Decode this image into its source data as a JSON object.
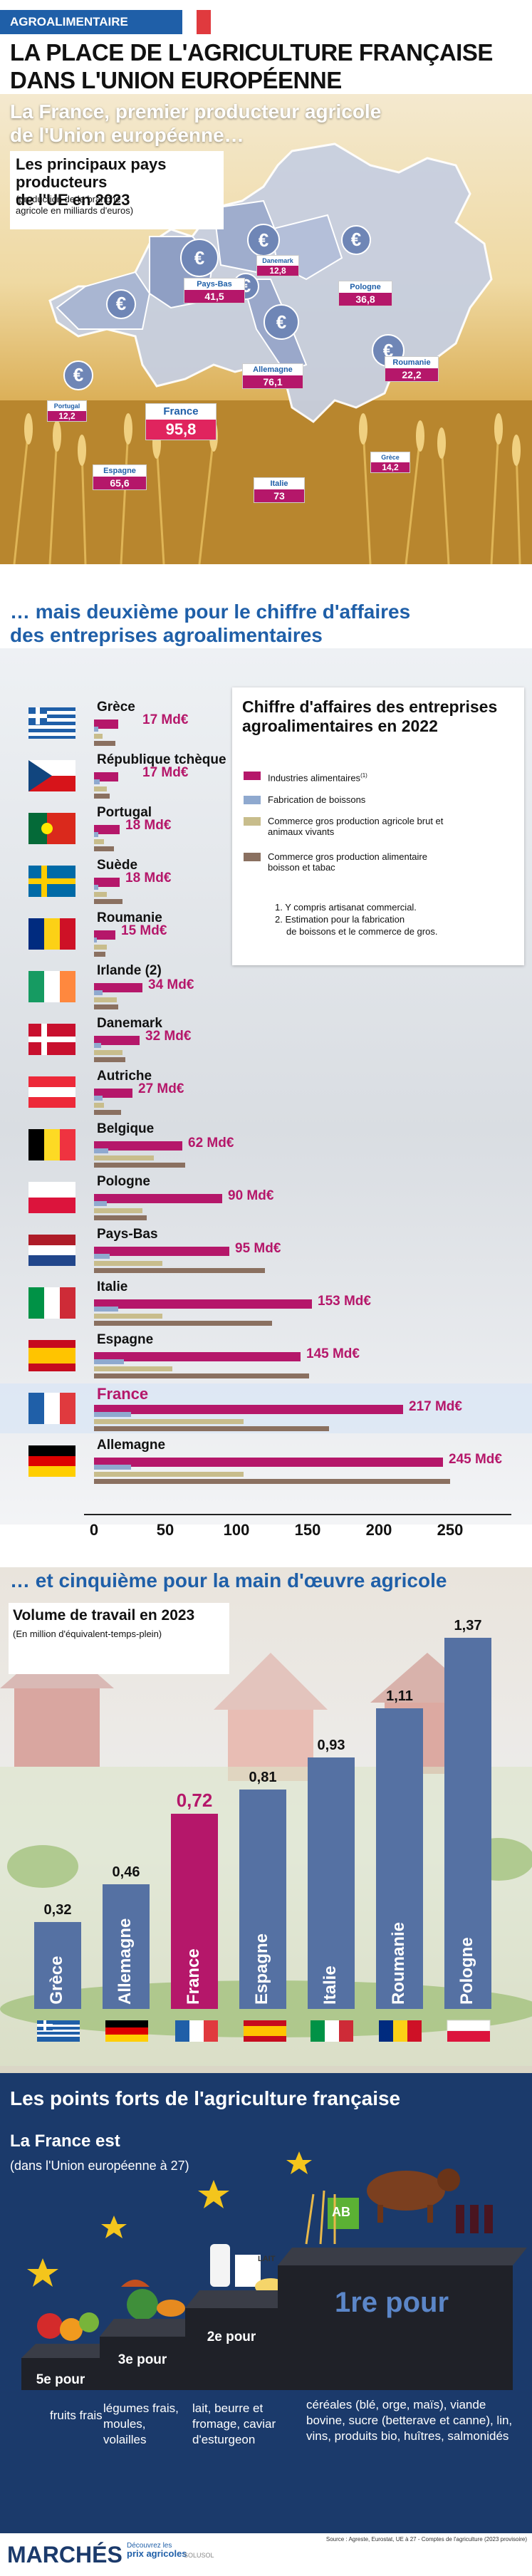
{
  "header": {
    "tag": "AGROALIMENTAIRE",
    "title_line1": "LA PLACE DE L'AGRICULTURE FRANÇAISE",
    "title_line2": "DANS L'UNION EUROPÉENNE"
  },
  "section1": {
    "heading_line1": "La France, premier producteur agricole",
    "heading_line2": "de l'Union européenne…",
    "box_title_line1": "Les principaux pays producteurs",
    "box_title_line2": "de l'UE en 2023",
    "box_subtitle_line1": "(production de la branche",
    "box_subtitle_line2": "agricole en milliards d'euros)",
    "producers": [
      {
        "name": "Pays-Bas",
        "value": "41,5"
      },
      {
        "name": "Danemark",
        "value": "12,8"
      },
      {
        "name": "Pologne",
        "value": "36,8"
      },
      {
        "name": "Allemagne",
        "value": "76,1"
      },
      {
        "name": "Roumanie",
        "value": "22,2"
      },
      {
        "name": "Portugal",
        "value": "12,2"
      },
      {
        "name": "France",
        "value": "95,8"
      },
      {
        "name": "Espagne",
        "value": "65,6"
      },
      {
        "name": "Italie",
        "value": "73"
      },
      {
        "name": "Grèce",
        "value": "14,2"
      }
    ]
  },
  "section2": {
    "heading_line1": "… mais deuxième pour le chiffre d'affaires",
    "heading_line2": "des entreprises agroalimentaires",
    "legend_title_line1": "Chiffre d'affaires des entreprises",
    "legend_title_line2": "agroalimentaires en 2022",
    "legend_items": [
      {
        "label": "Industries alimentaires",
        "sup": "(1)",
        "color": "#b5176a"
      },
      {
        "label": "Fabrication de boissons",
        "sup": "",
        "color": "#8fa9cf"
      },
      {
        "label": "Commerce gros production agricole  brut et animaux vivants",
        "sup": "",
        "color": "#c8bd8c"
      },
      {
        "label": "Commerce gros production alimentaire boisson et tabac",
        "sup": "",
        "color": "#8a7060"
      }
    ],
    "note1": "1. Y compris artisanat commercial.",
    "note2a": "2. Estimation pour la fabrication",
    "note2b": "de boissons et le commerce de gros.",
    "ticks": [
      "0",
      "50",
      "100",
      "150",
      "200",
      "250"
    ]
  },
  "chart_data": {
    "type": "bar",
    "title": "Chiffre d'affaires des entreprises agroalimentaires en 2022",
    "categories": [
      "Grèce",
      "République tchèque",
      "Portugal",
      "Suède",
      "Roumanie",
      "Irlande (2)",
      "Danemark",
      "Autriche",
      "Belgique",
      "Pologne",
      "Pays-Bas",
      "Italie",
      "Espagne",
      "France",
      "Allemagne"
    ],
    "labels": [
      "17 Md€",
      "17 Md€",
      "18 Md€",
      "18 Md€",
      "15 Md€",
      "34 Md€",
      "32 Md€",
      "27 Md€",
      "62 Md€",
      "90 Md€",
      "95 Md€",
      "153 Md€",
      "145 Md€",
      "217 Md€",
      "245 Md€"
    ],
    "xlim": [
      0,
      260
    ],
    "series": [
      {
        "name": "Industries alimentaires",
        "values": [
          17,
          17,
          18,
          18,
          15,
          34,
          32,
          27,
          62,
          90,
          95,
          153,
          145,
          217,
          245
        ]
      },
      {
        "name": "Fabrication de boissons",
        "values": [
          3,
          4,
          3,
          3,
          2,
          6,
          5,
          6,
          10,
          9,
          11,
          17,
          21,
          26,
          26
        ]
      },
      {
        "name": "Commerce gros production agricole  brut et animaux vivants",
        "values": [
          6,
          9,
          7,
          9,
          9,
          16,
          20,
          7,
          42,
          34,
          48,
          48,
          55,
          105,
          105
        ]
      },
      {
        "name": "Commerce gros production alimentaire boisson et tabac",
        "values": [
          15,
          11,
          14,
          20,
          8,
          17,
          22,
          19,
          64,
          37,
          120,
          125,
          151,
          165,
          250
        ]
      }
    ]
  },
  "section3": {
    "heading": "… et cinquième pour la main d'œuvre agricole",
    "box_title": "Volume de travail en 2023",
    "box_subtitle": "(En million d'équivalent-temps-plein)",
    "bars": [
      {
        "name": "Grèce",
        "value": 0.32,
        "label": "0,32"
      },
      {
        "name": "Allemagne",
        "value": 0.46,
        "label": "0,46"
      },
      {
        "name": "France",
        "value": 0.72,
        "label": "0,72"
      },
      {
        "name": "Espagne",
        "value": 0.81,
        "label": "0,81"
      },
      {
        "name": "Italie",
        "value": 0.93,
        "label": "0,93"
      },
      {
        "name": "Roumanie",
        "value": 1.11,
        "label": "1,11"
      },
      {
        "name": "Pologne",
        "value": 1.37,
        "label": "1,37"
      }
    ]
  },
  "section4": {
    "heading": "Les points forts de l'agriculture française",
    "box_title": "La France est",
    "box_subtitle": "(dans l'Union européenne à 27)",
    "rank5": "5e pour",
    "rank3": "3e pour",
    "rank2": "2e pour",
    "rank1": "1re pour",
    "text5": "fruits frais",
    "text3": "légumes frais, moules, volailles",
    "text2": "lait, beurre et fromage, caviar d'esturgeon",
    "text1": "céréales (blé, orge, maïs), viande bovine, sucre (betterave et canne), lin, vins, produits bio, huîtres, salmonidés",
    "bio_badge": "AB",
    "milk_label": "LAIT"
  },
  "footer": {
    "brand": "MARCHÉS",
    "sub_line1": "Découvrez les",
    "sub_line2": "prix agricoles",
    "sub_brand": "SOLUSOL",
    "source": "Source : Agreste, Eurostat, UE à 27 - Comptes de l'agriculture (2023 provisoire)"
  }
}
